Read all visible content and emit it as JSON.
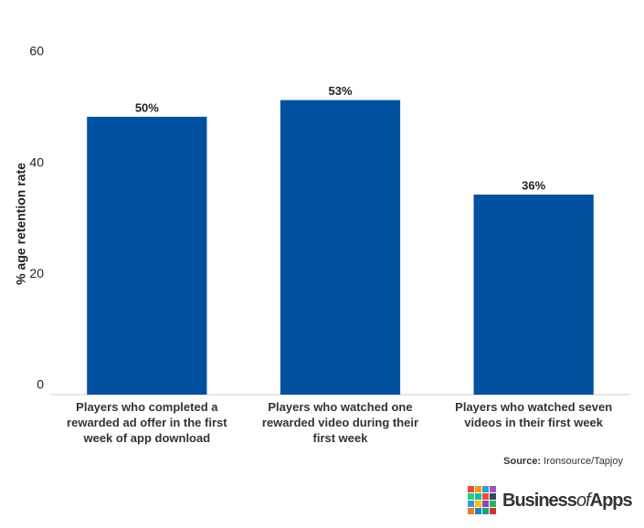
{
  "chart_data": {
    "type": "bar",
    "y_label": "% age retention rate",
    "categories": [
      "Players who completed a rewarded ad offer in the first week of app download",
      "Players who watched one rewarded video during their first week",
      "Players who watched seven videos in their first week"
    ],
    "values": [
      50,
      53,
      36
    ],
    "value_labels": [
      "50%",
      "53%",
      "36%"
    ],
    "color": "#0050a0",
    "ylim": [
      0,
      60
    ],
    "yticks": [
      0,
      20,
      40,
      60
    ],
    "grid": false,
    "source_label": "Source:",
    "source": "Ironsource/Tapjoy"
  },
  "logo": [
    "Business",
    "of",
    "Apps"
  ]
}
